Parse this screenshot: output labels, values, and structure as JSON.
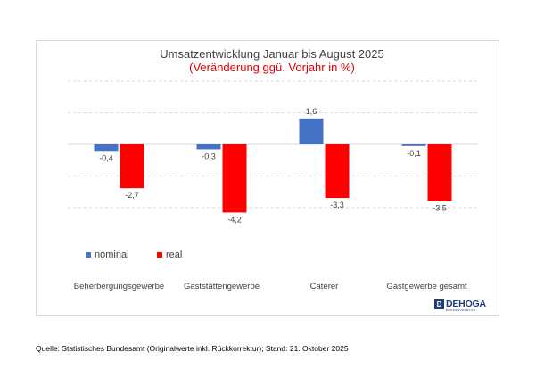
{
  "chart_data": {
    "type": "bar",
    "title": "Umsatzentwicklung Januar bis August 2025",
    "subtitle": "(Veränderung ggü. Vorjahr in %)",
    "categories": [
      "Beherbergungsgewerbe",
      "Gaststättengewerbe",
      "Caterer",
      "Gastgewerbe gesamt"
    ],
    "series": [
      {
        "name": "nominal",
        "color": "#4472c4",
        "values": [
          -0.4,
          -0.3,
          1.6,
          -0.1
        ],
        "labels": [
          "-0,4",
          "-0,3",
          "1,6",
          "-0,1"
        ]
      },
      {
        "name": "real",
        "color": "#ff0000",
        "values": [
          -2.7,
          -4.2,
          -3.3,
          -3.5
        ],
        "labels": [
          "-2,7",
          "-4,2",
          "-3,3",
          "-3,5"
        ]
      }
    ],
    "ylim": [
      -4.2,
      3.9
    ],
    "grid": true,
    "legend_position": "bottom-left"
  },
  "footer": {
    "source": "Quelle: Statistisches Bundesamt (Originalwerte inkl. Rückkorrektur); Stand: 21. Oktober 2025"
  },
  "logo": {
    "name": "DEHOGA",
    "sub": "BUNDESVERBAND"
  }
}
